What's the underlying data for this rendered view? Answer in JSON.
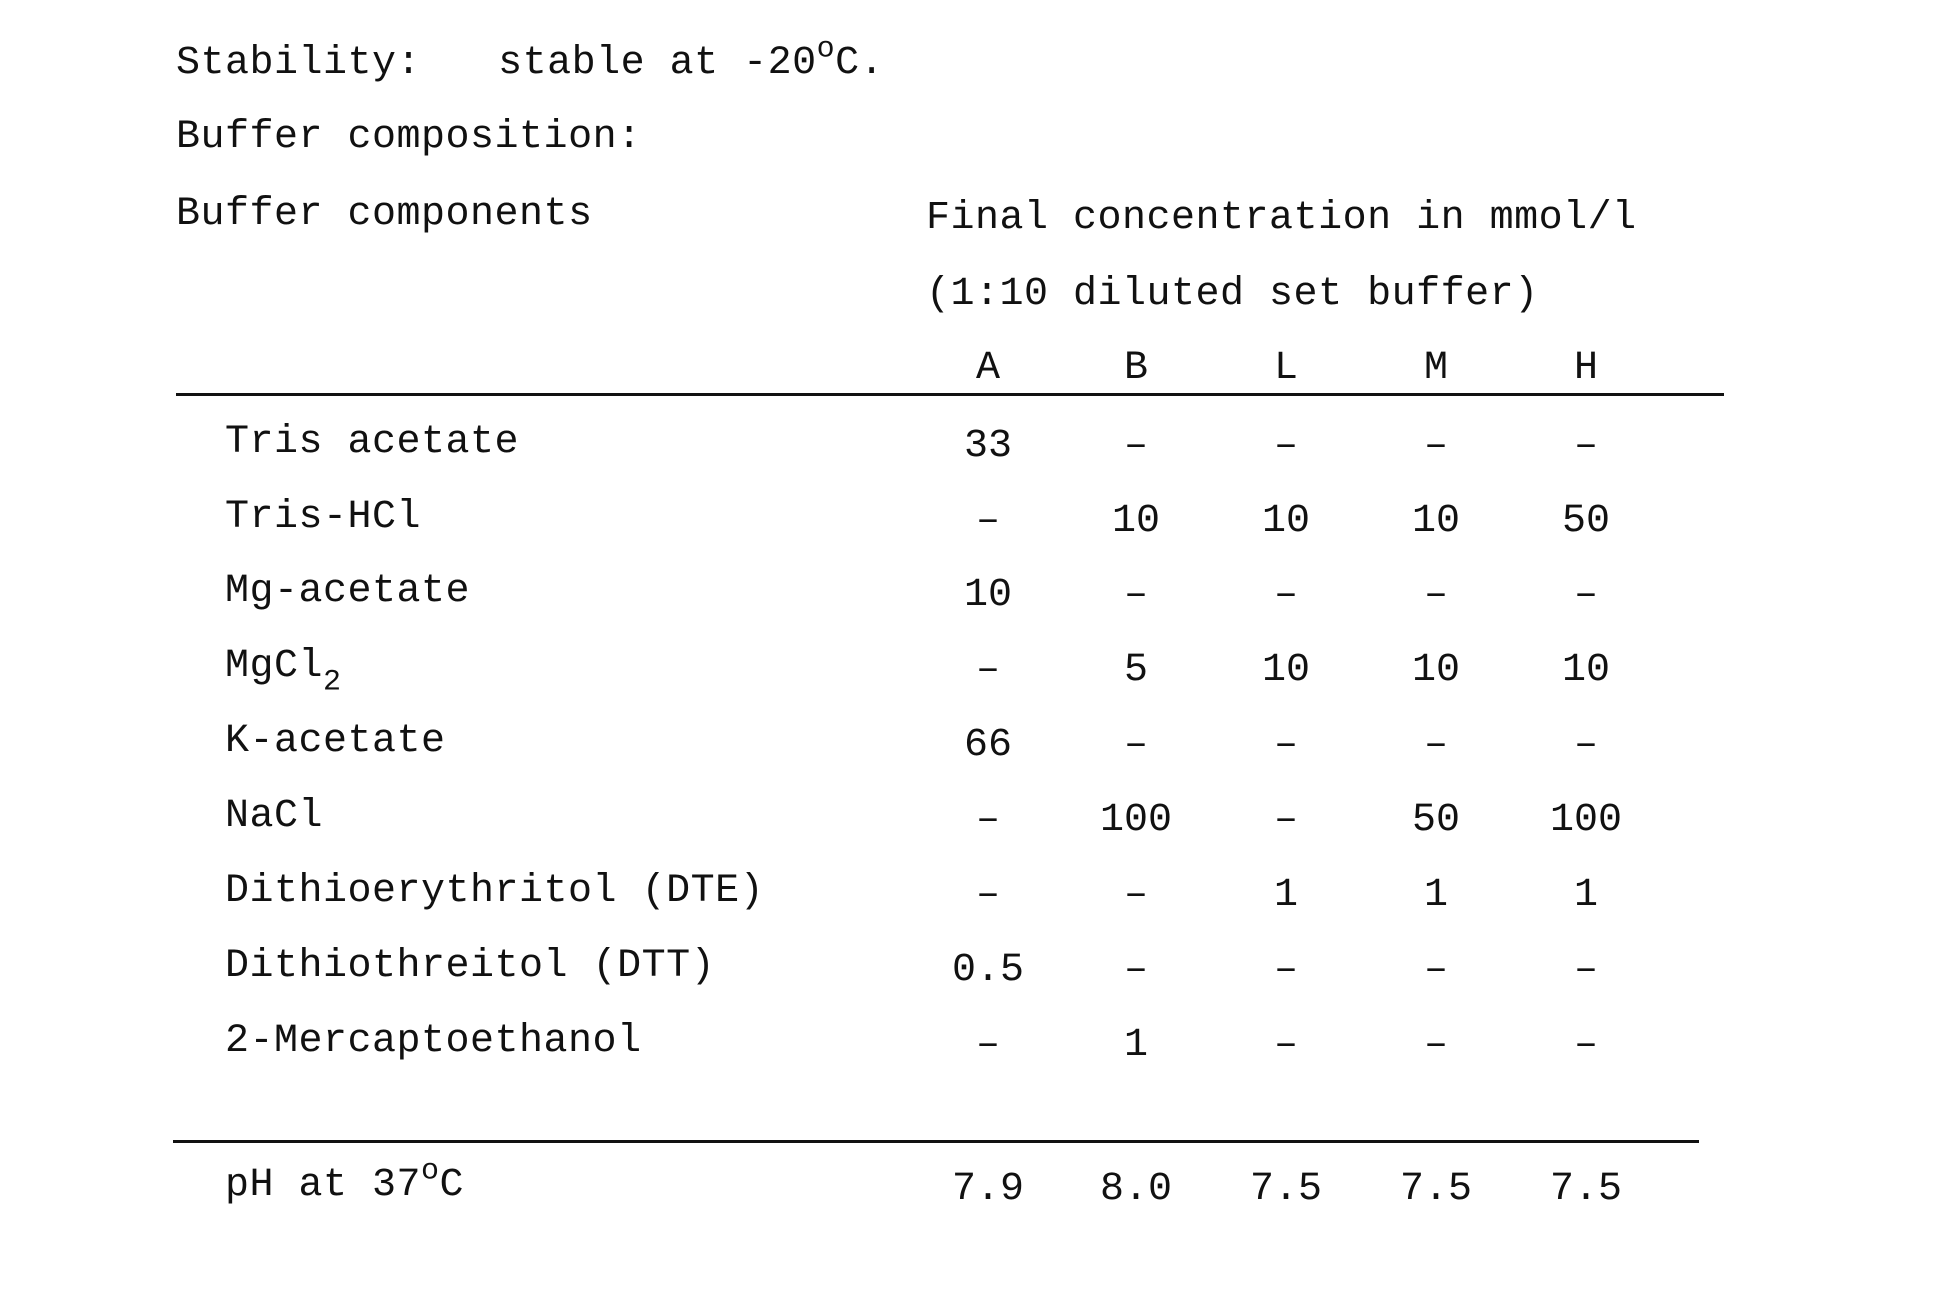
{
  "stability": {
    "label": "Stability:",
    "value_prefix": "stable at -20",
    "value_sup": "o",
    "value_suffix": "C."
  },
  "buffer_composition_label": "Buffer composition:",
  "components_header": "Buffer components",
  "concentration_header": {
    "line1": "Final concentration in mmol/l",
    "line2": "(1:10 diluted set buffer)"
  },
  "columns": [
    "A",
    "B",
    "L",
    "M",
    "H"
  ],
  "rows": [
    {
      "name": "Tris acetate",
      "sub": "",
      "values": [
        "33",
        "–",
        "–",
        "–",
        "–"
      ]
    },
    {
      "name": "Tris-HCl",
      "sub": "",
      "values": [
        "–",
        "10",
        "10",
        "10",
        "50"
      ]
    },
    {
      "name": "Mg-acetate",
      "sub": "",
      "values": [
        "10",
        "–",
        "–",
        "–",
        "–"
      ]
    },
    {
      "name": "MgCl",
      "sub": "2",
      "values": [
        "–",
        "5",
        "10",
        "10",
        "10"
      ]
    },
    {
      "name": "K-acetate",
      "sub": "",
      "values": [
        "66",
        "–",
        "–",
        "–",
        "–"
      ]
    },
    {
      "name": "NaCl",
      "sub": "",
      "values": [
        "–",
        "100",
        "–",
        "50",
        "100"
      ]
    },
    {
      "name": "Dithioerythritol (DTE)",
      "sub": "",
      "values": [
        "–",
        "–",
        "1",
        "1",
        "1"
      ]
    },
    {
      "name": "Dithiothreitol (DTT)",
      "sub": "",
      "values": [
        "0.5",
        "–",
        "–",
        "–",
        "–"
      ]
    },
    {
      "name": "2-Mercaptoethanol",
      "sub": "",
      "values": [
        "–",
        "1",
        "–",
        "–",
        "–"
      ]
    }
  ],
  "ph_row": {
    "label_prefix": "pH at 37",
    "label_sup": "o",
    "label_suffix": "C",
    "values": [
      "7.9",
      "8.0",
      "7.5",
      "7.5",
      "7.5"
    ]
  }
}
